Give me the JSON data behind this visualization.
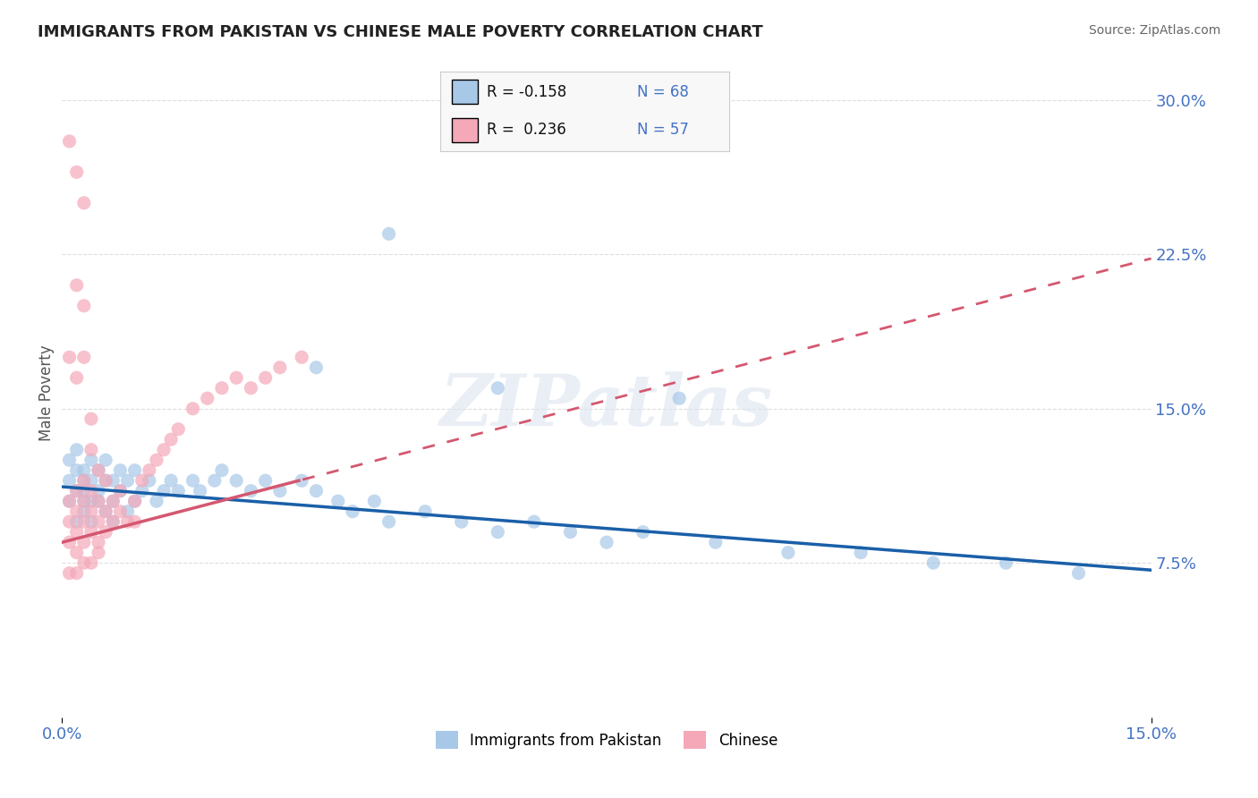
{
  "title": "IMMIGRANTS FROM PAKISTAN VS CHINESE MALE POVERTY CORRELATION CHART",
  "source": "Source: ZipAtlas.com",
  "ylabel": "Male Poverty",
  "xlim": [
    0.0,
    0.15
  ],
  "ylim": [
    0.0,
    0.315
  ],
  "xtick_positions": [
    0.0,
    0.15
  ],
  "xticklabels": [
    "0.0%",
    "15.0%"
  ],
  "ytick_positions": [
    0.075,
    0.15,
    0.225,
    0.3
  ],
  "ytick_labels": [
    "7.5%",
    "15.0%",
    "22.5%",
    "30.0%"
  ],
  "color_blue": "#a8c8e8",
  "color_pink": "#f4a8b8",
  "color_line_blue": "#1a5fa8",
  "color_line_pink": "#d45870",
  "color_tick_label": "#4472c4",
  "color_source": "#666666",
  "color_grid": "#dddddd",
  "watermark": "ZIPatlas",
  "blue_intercept": 0.112,
  "blue_slope": -0.27,
  "pink_intercept": 0.085,
  "pink_slope": 0.92,
  "blue_x": [
    0.001,
    0.001,
    0.001,
    0.002,
    0.002,
    0.002,
    0.002,
    0.003,
    0.003,
    0.003,
    0.003,
    0.003,
    0.004,
    0.004,
    0.004,
    0.004,
    0.005,
    0.005,
    0.005,
    0.006,
    0.006,
    0.006,
    0.007,
    0.007,
    0.007,
    0.008,
    0.008,
    0.009,
    0.009,
    0.01,
    0.01,
    0.011,
    0.012,
    0.013,
    0.014,
    0.015,
    0.016,
    0.018,
    0.019,
    0.021,
    0.022,
    0.024,
    0.026,
    0.028,
    0.03,
    0.033,
    0.035,
    0.038,
    0.04,
    0.043,
    0.045,
    0.05,
    0.055,
    0.06,
    0.065,
    0.07,
    0.075,
    0.08,
    0.09,
    0.1,
    0.11,
    0.12,
    0.13,
    0.14,
    0.085,
    0.045,
    0.035,
    0.06
  ],
  "blue_y": [
    0.105,
    0.115,
    0.125,
    0.095,
    0.11,
    0.12,
    0.13,
    0.1,
    0.11,
    0.12,
    0.105,
    0.115,
    0.095,
    0.105,
    0.115,
    0.125,
    0.11,
    0.12,
    0.105,
    0.1,
    0.115,
    0.125,
    0.105,
    0.115,
    0.095,
    0.11,
    0.12,
    0.1,
    0.115,
    0.105,
    0.12,
    0.11,
    0.115,
    0.105,
    0.11,
    0.115,
    0.11,
    0.115,
    0.11,
    0.115,
    0.12,
    0.115,
    0.11,
    0.115,
    0.11,
    0.115,
    0.11,
    0.105,
    0.1,
    0.105,
    0.095,
    0.1,
    0.095,
    0.09,
    0.095,
    0.09,
    0.085,
    0.09,
    0.085,
    0.08,
    0.08,
    0.075,
    0.075,
    0.07,
    0.155,
    0.235,
    0.17,
    0.16
  ],
  "pink_x": [
    0.001,
    0.001,
    0.001,
    0.002,
    0.002,
    0.002,
    0.002,
    0.003,
    0.003,
    0.003,
    0.003,
    0.004,
    0.004,
    0.004,
    0.005,
    0.005,
    0.005,
    0.006,
    0.006,
    0.007,
    0.007,
    0.008,
    0.008,
    0.009,
    0.01,
    0.01,
    0.011,
    0.012,
    0.013,
    0.014,
    0.015,
    0.016,
    0.018,
    0.02,
    0.022,
    0.024,
    0.026,
    0.028,
    0.03,
    0.033,
    0.001,
    0.002,
    0.003,
    0.002,
    0.003,
    0.001,
    0.002,
    0.003,
    0.004,
    0.004,
    0.005,
    0.006,
    0.003,
    0.002,
    0.004,
    0.005,
    0.001
  ],
  "pink_y": [
    0.095,
    0.105,
    0.085,
    0.1,
    0.11,
    0.09,
    0.08,
    0.105,
    0.095,
    0.085,
    0.115,
    0.1,
    0.09,
    0.11,
    0.095,
    0.105,
    0.085,
    0.1,
    0.09,
    0.105,
    0.095,
    0.11,
    0.1,
    0.095,
    0.105,
    0.095,
    0.115,
    0.12,
    0.125,
    0.13,
    0.135,
    0.14,
    0.15,
    0.155,
    0.16,
    0.165,
    0.16,
    0.165,
    0.17,
    0.175,
    0.28,
    0.265,
    0.25,
    0.21,
    0.2,
    0.175,
    0.165,
    0.175,
    0.145,
    0.13,
    0.12,
    0.115,
    0.075,
    0.07,
    0.075,
    0.08,
    0.07
  ],
  "bg_color": "#ffffff"
}
